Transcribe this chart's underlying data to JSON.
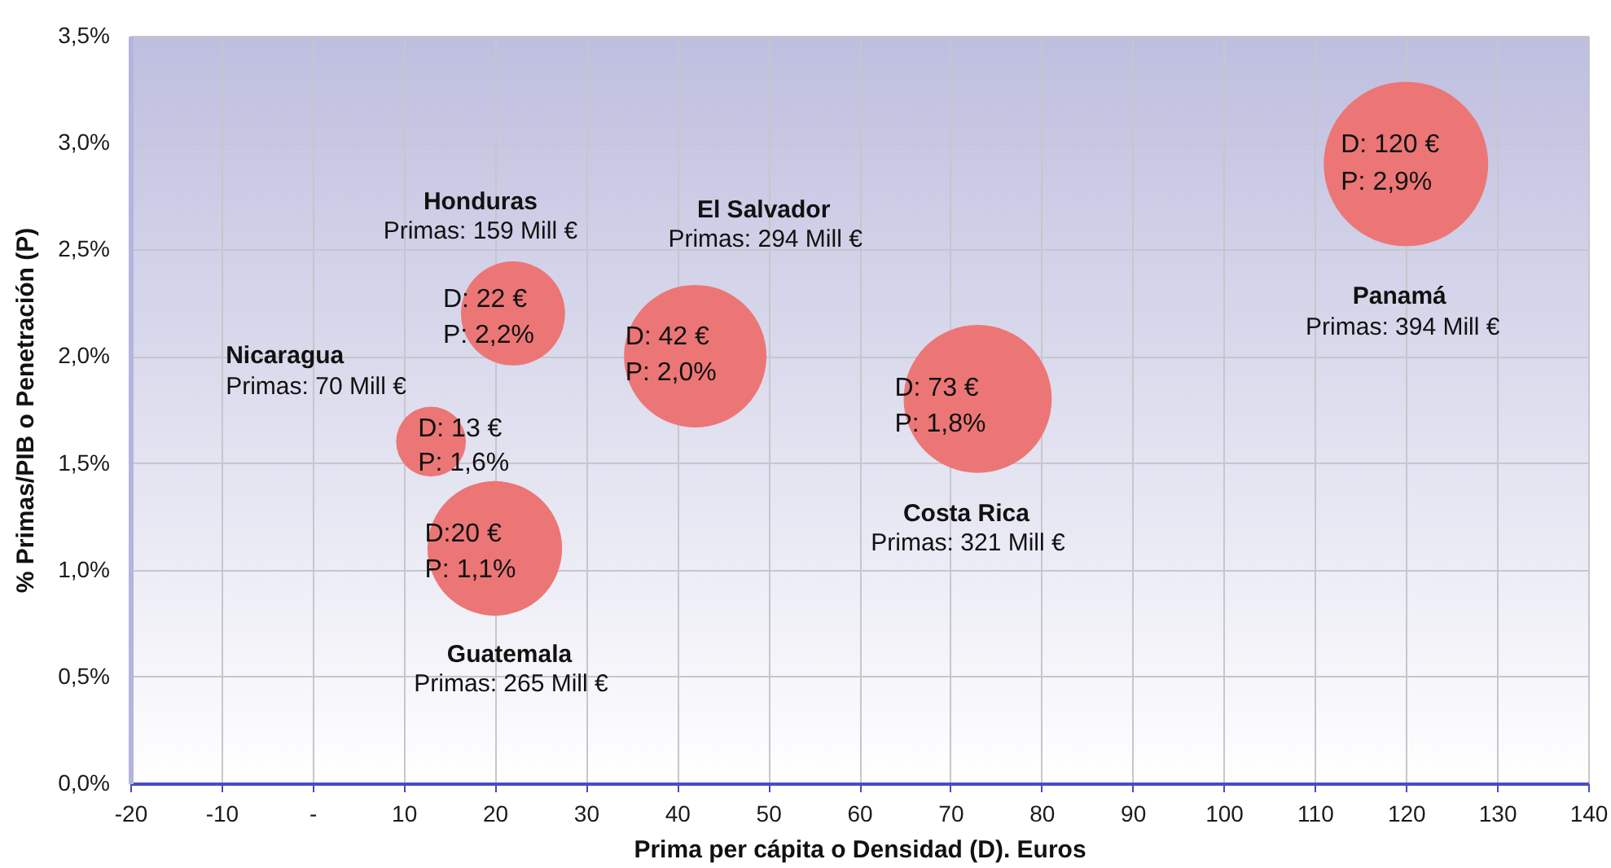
{
  "chart_data": {
    "type": "bubble",
    "xlabel": "Prima per cápita o Densidad (D). Euros",
    "ylabel": "% Primas/PIB o Penetración (P)",
    "x": [
      13,
      20,
      22,
      42,
      73,
      120
    ],
    "values": [
      1.6,
      1.1,
      2.2,
      2.0,
      1.8,
      2.9
    ],
    "sizes": [
      0.18,
      0.67,
      0.4,
      0.75,
      0.81,
      1
    ],
    "color": "#ec7676",
    "annotations": [
      "Nicaragua",
      "Primas: 70 Mill €",
      {
        "text": "D: 13 €",
        "x": 13,
        "y": 1.6
      },
      {
        "text": "P: 1,6%",
        "x": 13,
        "y": 1.6
      },
      "Guatemala",
      "Primas: 265 Mill €",
      {
        "text": "D:20 €",
        "x": 20,
        "y": 1.1
      },
      {
        "text": "P: 1,1%",
        "x": 20,
        "y": 1.1
      },
      "Honduras",
      "Primas: 159 Mill €",
      {
        "text": "D: 22 €",
        "x": 22,
        "y": 2.2
      },
      {
        "text": "P: 2,2%",
        "x": 22,
        "y": 2.2
      },
      "El Salvador",
      "Primas: 294 Mill €",
      {
        "text": "D: 42 €",
        "x": 42,
        "y": 2.0
      },
      {
        "text": "P: 2,0%",
        "x": 42,
        "y": 2.0
      },
      "Costa Rica",
      "Primas: 321 Mill €",
      {
        "text": "D: 73 €",
        "x": 73,
        "y": 1.8
      },
      {
        "text": "P: 1,8%",
        "x": 73,
        "y": 1.8
      },
      "Panamá",
      "Primas: 394 Mill €",
      {
        "text": "D: 120 €",
        "x": 120,
        "y": 2.9
      },
      {
        "text": "P: 2,9%",
        "x": 120,
        "y": 2.9
      }
    ],
    "xlim": [
      -20,
      140
    ],
    "xticks": [
      -20,
      -10,
      {
        "value": 0,
        "label": "-"
      },
      10,
      20,
      30,
      40,
      50,
      60,
      70,
      80,
      90,
      100,
      110,
      120,
      130,
      140
    ],
    "ylim": [
      0,
      3.5
    ],
    "yticks": [
      {
        "value": 0,
        "label": "0,0%"
      },
      {
        "value": 0.5,
        "label": "0,5%"
      },
      {
        "value": 1,
        "label": "1,0%"
      },
      {
        "value": 1.5,
        "label": "1,5%"
      },
      {
        "value": 2,
        "label": "2,0%"
      },
      {
        "value": 2.5,
        "label": "2,5%"
      },
      {
        "value": 3,
        "label": "3,0%"
      },
      {
        "value": 3.5,
        "label": "3,5%"
      }
    ],
    "grid": true
  }
}
